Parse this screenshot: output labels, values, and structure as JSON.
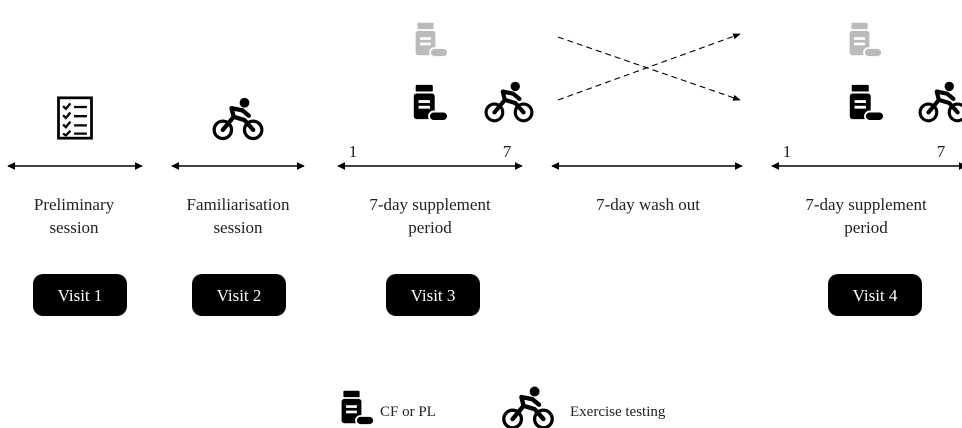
{
  "stages": [
    {
      "label_lines": [
        "Preliminary",
        "session"
      ],
      "visit": "Visit 1"
    },
    {
      "label_lines": [
        "Familiarisation",
        "session"
      ],
      "visit": "Visit 2"
    },
    {
      "label_lines": [
        "7-day supplement",
        "period"
      ],
      "visit": "Visit 3",
      "day_start": "1",
      "day_end": "7"
    },
    {
      "label_lines": [
        "7-day wash out"
      ]
    },
    {
      "label_lines": [
        "7-day supplement",
        "period"
      ],
      "visit": "Visit 4",
      "day_start": "1",
      "day_end": "7"
    }
  ],
  "legend": {
    "supplement": "CF or PL",
    "exercise": "Exercise testing"
  }
}
